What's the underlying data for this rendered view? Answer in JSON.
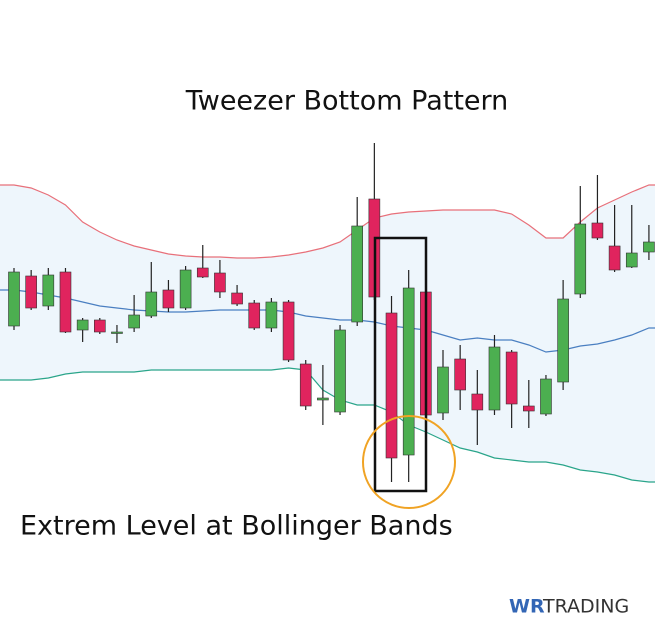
{
  "chart_data": {
    "type": "candlestick",
    "title": "Tweezer Bottom Pattern",
    "annotation": "Extrem Level at Bollinger Bands",
    "brand": {
      "prefix": "WR",
      "name": "TRADING"
    },
    "ylim": [
      0,
      360
    ],
    "up_color": "#4caf50",
    "down_color": "#e0245e",
    "open": [
      174,
      224,
      194,
      228,
      170,
      180,
      168,
      172,
      184,
      210,
      192,
      232,
      227,
      207,
      197,
      172,
      198,
      136,
      100,
      88,
      178,
      301,
      187,
      45,
      208,
      87,
      141,
      106,
      90,
      148,
      94,
      86,
      118,
      206,
      277,
      254,
      233,
      248
    ],
    "high": [
      232,
      230,
      232,
      232,
      182,
      182,
      175,
      205,
      238,
      220,
      234,
      255,
      240,
      215,
      200,
      202,
      200,
      140,
      135,
      175,
      303,
      357,
      204,
      230,
      210,
      150,
      155,
      130,
      165,
      150,
      120,
      125,
      220,
      314,
      325,
      295,
      295,
      275
    ],
    "low": [
      170,
      190,
      190,
      167,
      158,
      166,
      157,
      168,
      182,
      188,
      190,
      222,
      202,
      194,
      170,
      168,
      138,
      90,
      75,
      85,
      174,
      200,
      18,
      18,
      70,
      80,
      90,
      55,
      85,
      72,
      72,
      84,
      110,
      202,
      260,
      228,
      232,
      240
    ],
    "close": [
      228,
      192,
      225,
      168,
      180,
      168,
      168,
      185,
      208,
      192,
      230,
      223,
      208,
      196,
      172,
      198,
      140,
      94,
      102,
      170,
      274,
      203,
      42,
      212,
      85,
      133,
      110,
      90,
      153,
      96,
      89,
      121,
      201,
      276,
      262,
      230,
      247,
      258
    ],
    "bands": {
      "fill": "#eef6fc",
      "upper_color": "#e8707a",
      "middle_color": "#4a7fc1",
      "lower_color": "#2aa58a",
      "upper": [
        315,
        312,
        305,
        295,
        278,
        268,
        260,
        254,
        250,
        246,
        244,
        243,
        243,
        242,
        242,
        243,
        245,
        248,
        252,
        258,
        270,
        282,
        286,
        288,
        289,
        290,
        290,
        290,
        290,
        286,
        275,
        262,
        262,
        278,
        292,
        300,
        308,
        315
      ],
      "middle": [
        210,
        208,
        205,
        202,
        198,
        194,
        192,
        190,
        189,
        188,
        188,
        189,
        190,
        190,
        190,
        190,
        188,
        184,
        182,
        180,
        180,
        178,
        174,
        172,
        170,
        165,
        160,
        162,
        160,
        160,
        155,
        148,
        150,
        154,
        156,
        160,
        165,
        172
      ],
      "lower": [
        120,
        120,
        122,
        126,
        128,
        128,
        128,
        128,
        130,
        130,
        130,
        130,
        130,
        130,
        130,
        130,
        132,
        130,
        110,
        100,
        95,
        95,
        88,
        75,
        68,
        60,
        52,
        48,
        42,
        40,
        38,
        38,
        35,
        30,
        28,
        25,
        20,
        18
      ]
    }
  }
}
